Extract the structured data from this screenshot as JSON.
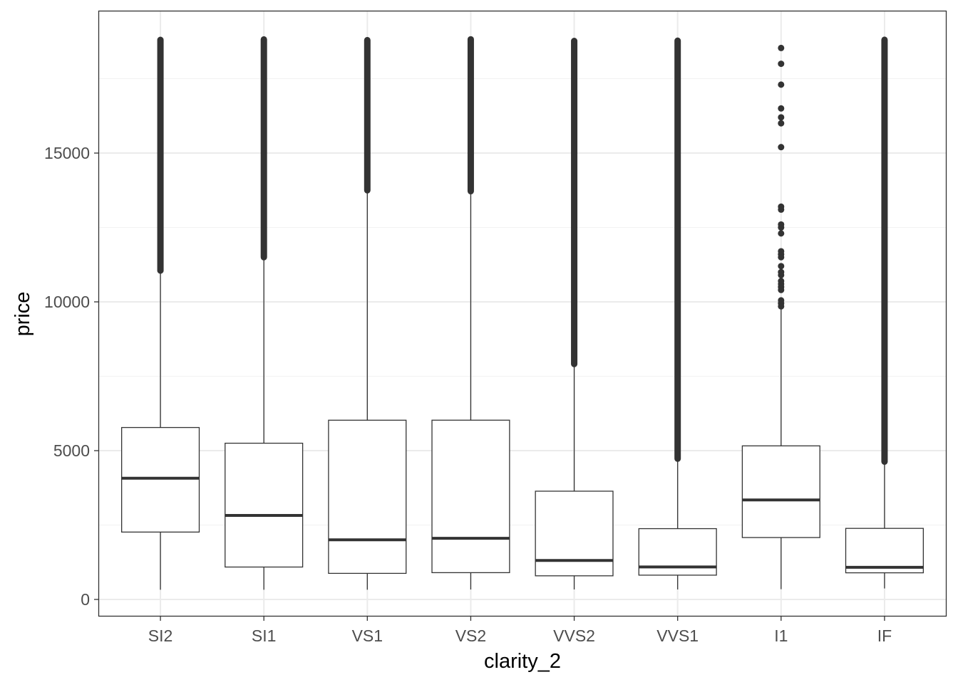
{
  "chart_data": {
    "type": "boxplot",
    "title": "",
    "xlabel": "clarity_2",
    "ylabel": "price",
    "ylim": [
      -574,
      19785
    ],
    "yticks": [
      0,
      5000,
      10000,
      15000
    ],
    "yticks_minor": [
      2500,
      7500,
      12500,
      17500
    ],
    "ytick_labels": [
      "0",
      "5000",
      "10000",
      "15000"
    ],
    "grid": true,
    "categories": [
      "SI2",
      "SI1",
      "VS1",
      "VS2",
      "VVS2",
      "VVS1",
      "I1",
      "IF"
    ],
    "boxes": [
      {
        "name": "SI2",
        "whisker_low": 326,
        "q1": 2264,
        "median": 4072,
        "q3": 5777,
        "whisker_high": 11040,
        "outlier_range": [
          11050,
          18804
        ],
        "outliers": []
      },
      {
        "name": "SI1",
        "whisker_low": 326,
        "q1": 1089,
        "median": 2822,
        "q3": 5250,
        "whisker_high": 11480,
        "outlier_range": [
          11500,
          18818
        ],
        "outliers": []
      },
      {
        "name": "VS1",
        "whisker_low": 327,
        "q1": 876,
        "median": 2005,
        "q3": 6023,
        "whisker_high": 13730,
        "outlier_range": [
          13750,
          18795
        ],
        "outliers": []
      },
      {
        "name": "VS2",
        "whisker_low": 334,
        "q1": 900,
        "median": 2054,
        "q3": 6024,
        "whisker_high": 13700,
        "outlier_range": [
          13720,
          18823
        ],
        "outliers": []
      },
      {
        "name": "VVS2",
        "whisker_low": 336,
        "q1": 794,
        "median": 1311,
        "q3": 3638,
        "whisker_high": 7900,
        "outlier_range": [
          7910,
          18768
        ],
        "outliers": []
      },
      {
        "name": "VVS1",
        "whisker_low": 336,
        "q1": 816,
        "median": 1093,
        "q3": 2379,
        "whisker_high": 4720,
        "outlier_range": [
          4730,
          18777
        ],
        "outliers": []
      },
      {
        "name": "I1",
        "whisker_low": 345,
        "q1": 2080,
        "median": 3344,
        "q3": 5161,
        "whisker_high": 9780,
        "outlier_range": null,
        "outliers": [
          9850,
          9950,
          10050,
          10400,
          10500,
          10600,
          10700,
          10900,
          11000,
          11200,
          11500,
          11600,
          11700,
          12300,
          12500,
          12600,
          13100,
          13200,
          15200,
          16000,
          16200,
          16500,
          17300,
          18000,
          18531
        ]
      },
      {
        "name": "IF",
        "whisker_low": 369,
        "q1": 895,
        "median": 1080,
        "q3": 2388,
        "whisker_high": 4620,
        "outlier_range": [
          4630,
          18806
        ],
        "outliers": []
      }
    ]
  }
}
